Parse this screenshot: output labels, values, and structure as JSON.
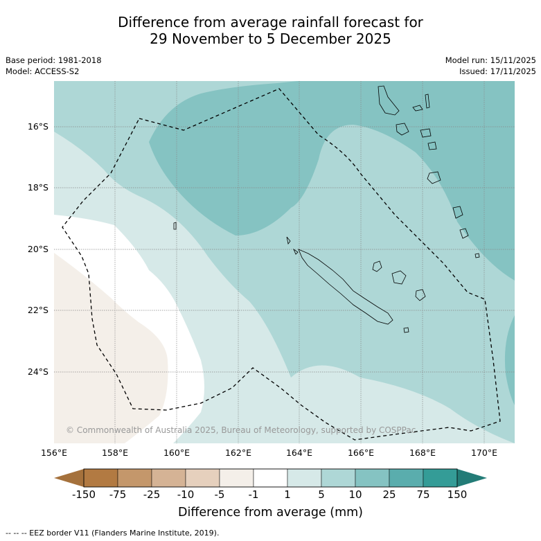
{
  "title": {
    "line1": "Difference from average rainfall forecast for",
    "line2": "29 November to 5 December 2025"
  },
  "meta_left": {
    "base_period": "Base period: 1981-2018",
    "model": "Model: ACCESS-S2"
  },
  "meta_right": {
    "model_run": "Model run: 15/11/2025",
    "issued": "Issued: 17/11/2025"
  },
  "map": {
    "lat_labels": [
      "16°S",
      "18°S",
      "20°S",
      "22°S",
      "24°S"
    ],
    "lon_labels": [
      "156°E",
      "158°E",
      "160°E",
      "162°E",
      "164°E",
      "166°E",
      "168°E",
      "170°E"
    ],
    "copyright": "© Commonwealth of Australia 2025, Bureau of Meteorology, supported by COSPPac",
    "colors": {
      "neg_5_to_neg_1": "#f4efe9",
      "neg_1_to_1": "#ffffff",
      "1_to_5": "#d6e9e8",
      "5_to_10": "#aed7d6",
      "10_to_25": "#85c3c2",
      "gridline": "#888888",
      "eez": "#000000"
    }
  },
  "colorbar": {
    "tick_labels": [
      "-150",
      "-75",
      "-25",
      "-10",
      "-5",
      "-1",
      "1",
      "5",
      "10",
      "25",
      "75",
      "150"
    ],
    "colors": [
      "#a5713c",
      "#b27a42",
      "#c4976b",
      "#d5b395",
      "#e6d0bd",
      "#f4efe9",
      "#ffffff",
      "#d6e9e8",
      "#aed7d6",
      "#85c3c2",
      "#5aadad",
      "#349c97",
      "#237c77"
    ],
    "title": "Difference from average (mm)"
  },
  "footer": "--  --  -- EEZ border V11 (Flanders Marine Institute, 2019)."
}
